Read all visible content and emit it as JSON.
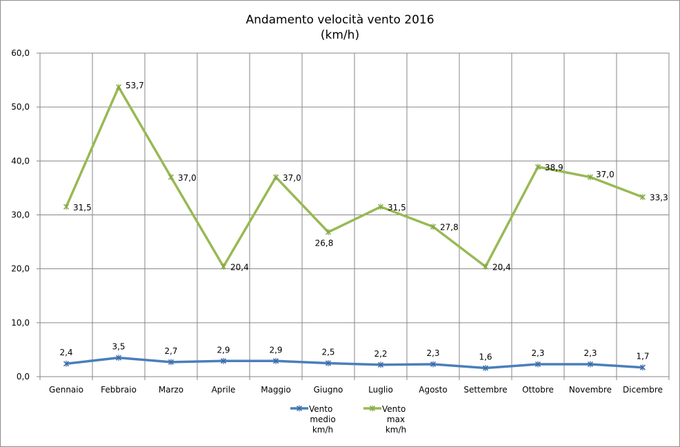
{
  "chart_data": {
    "type": "line",
    "title": "Andamento velocità vento 2016",
    "subtitle": "(km/h)",
    "xlabel": "",
    "ylabel": "",
    "ylim": [
      0,
      60
    ],
    "yticks": [
      "0,0",
      "10,0",
      "20,0",
      "30,0",
      "40,0",
      "50,0",
      "60,0"
    ],
    "grid": true,
    "legend_position": "bottom",
    "categories": [
      "Gennaio",
      "Febbraio",
      "Marzo",
      "Aprile",
      "Maggio",
      "Giugno",
      "Luglio",
      "Agosto",
      "Settembre",
      "Ottobre",
      "Novembre",
      "Dicembre"
    ],
    "series": [
      {
        "name": "Vento medio km/h",
        "legend_lines": [
          "Vento",
          "medio",
          "km/h"
        ],
        "color": "#4a7ebb",
        "values": [
          2.4,
          3.5,
          2.7,
          2.9,
          2.9,
          2.5,
          2.2,
          2.3,
          1.6,
          2.3,
          2.3,
          1.7
        ],
        "labels": [
          "2,4",
          "3,5",
          "2,7",
          "2,9",
          "2,9",
          "2,5",
          "2,2",
          "2,3",
          "1,6",
          "2,3",
          "2,3",
          "1,7"
        ]
      },
      {
        "name": "Vento max km/h",
        "legend_lines": [
          "Vento",
          "max",
          "km/h"
        ],
        "color": "#98b954",
        "values": [
          31.5,
          53.7,
          37.0,
          20.4,
          37.0,
          26.8,
          31.5,
          27.8,
          20.4,
          38.9,
          37.0,
          33.3
        ],
        "labels": [
          "31,5",
          "53,7",
          "37,0",
          "20,4",
          "37,0",
          "26,8",
          "31,5",
          "27,8",
          "20,4",
          "38,9",
          "37,0",
          "33,3"
        ]
      }
    ]
  }
}
